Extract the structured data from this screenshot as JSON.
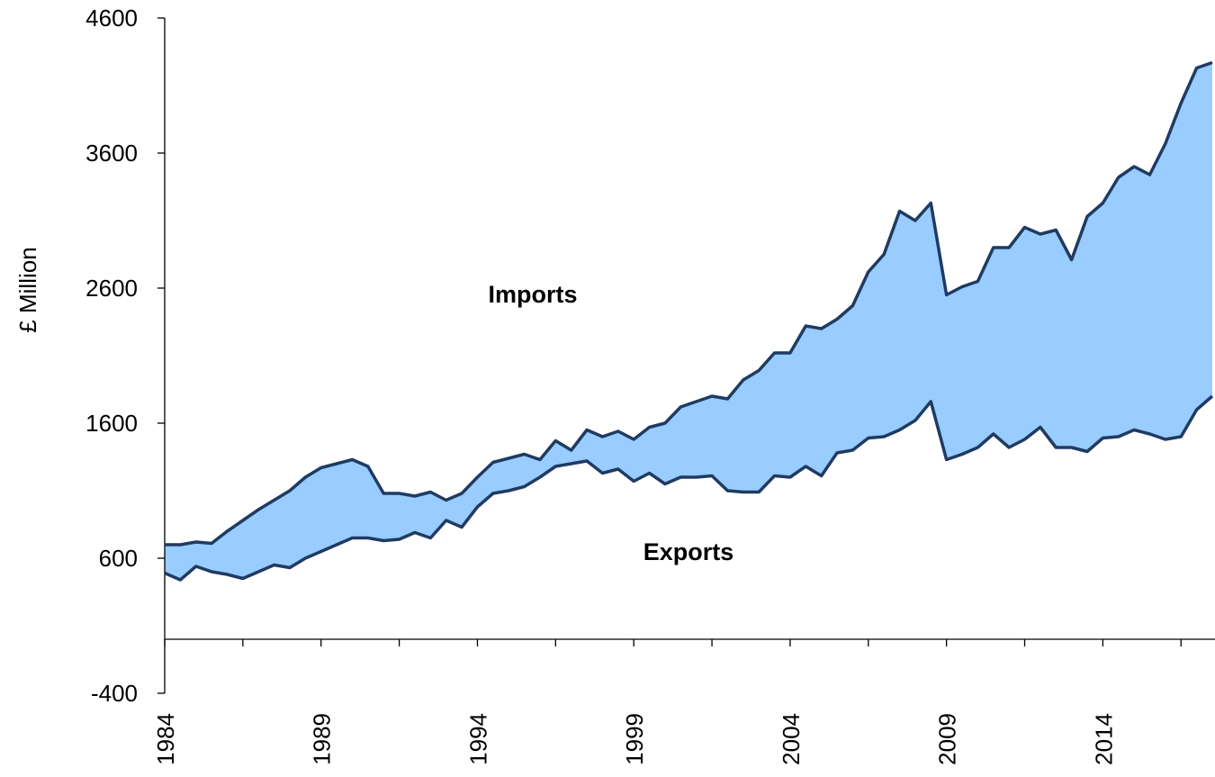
{
  "chart_data": {
    "type": "line",
    "fill_between": true,
    "fill_color": "#99ccff",
    "y_label": "£ Million",
    "x": [
      1984,
      1984.5,
      1985,
      1985.5,
      1986,
      1986.5,
      1987,
      1987.5,
      1988,
      1988.5,
      1989,
      1989.5,
      1990,
      1990.5,
      1991,
      1991.5,
      1992,
      1992.5,
      1993,
      1993.5,
      1994,
      1994.5,
      1995,
      1995.5,
      1996,
      1996.5,
      1997,
      1997.5,
      1998,
      1998.5,
      1999,
      1999.5,
      2000,
      2000.5,
      2001,
      2001.5,
      2002,
      2002.5,
      2003,
      2003.5,
      2004,
      2004.5,
      2005,
      2005.5,
      2006,
      2006.5,
      2007,
      2007.5,
      2008,
      2008.5,
      2009,
      2009.5,
      2010,
      2010.5,
      2011,
      2011.5,
      2012,
      2012.5,
      2013,
      2013.5,
      2014,
      2014.5,
      2015,
      2015.5,
      2016,
      2016.5,
      2017,
      2017.5
    ],
    "series": [
      {
        "name": "Imports",
        "color": "#1f3b63",
        "values": [
          700,
          700,
          720,
          710,
          800,
          880,
          960,
          1030,
          1100,
          1200,
          1270,
          1300,
          1330,
          1280,
          1080,
          1080,
          1060,
          1090,
          1030,
          1080,
          1200,
          1310,
          1340,
          1370,
          1330,
          1470,
          1400,
          1550,
          1500,
          1540,
          1480,
          1570,
          1600,
          1720,
          1760,
          1800,
          1780,
          1920,
          1990,
          2120,
          2120,
          2320,
          2300,
          2370,
          2470,
          2720,
          2850,
          3170,
          3100,
          3230,
          2550,
          2610,
          2650,
          2900,
          2900,
          3050,
          3000,
          3030,
          2810,
          3130,
          3230,
          3420,
          3500,
          3440,
          3670,
          3970,
          4230,
          4270
        ]
      },
      {
        "name": "Exports",
        "color": "#1f3b63",
        "values": [
          490,
          440,
          540,
          500,
          480,
          450,
          500,
          550,
          530,
          600,
          650,
          700,
          750,
          750,
          730,
          740,
          790,
          750,
          880,
          830,
          980,
          1080,
          1100,
          1130,
          1200,
          1280,
          1300,
          1320,
          1230,
          1260,
          1170,
          1230,
          1150,
          1200,
          1200,
          1210,
          1100,
          1090,
          1090,
          1210,
          1200,
          1280,
          1210,
          1380,
          1400,
          1490,
          1500,
          1550,
          1620,
          1760,
          1330,
          1370,
          1420,
          1520,
          1420,
          1480,
          1570,
          1420,
          1420,
          1390,
          1490,
          1500,
          1550,
          1520,
          1480,
          1500,
          1700,
          1800
        ]
      }
    ],
    "xlim": [
      1984,
      2017.5
    ],
    "xticks": [
      1984,
      1989,
      1994,
      1999,
      2004,
      2009,
      2014
    ],
    "xminorticks": [
      1986.5,
      1991.5,
      1996.5,
      2001.5,
      2006.5,
      2011.5,
      2016.5
    ],
    "ylim": [
      -400,
      4600
    ],
    "yticks": [
      -400,
      600,
      1600,
      2600,
      3600,
      4600
    ]
  }
}
